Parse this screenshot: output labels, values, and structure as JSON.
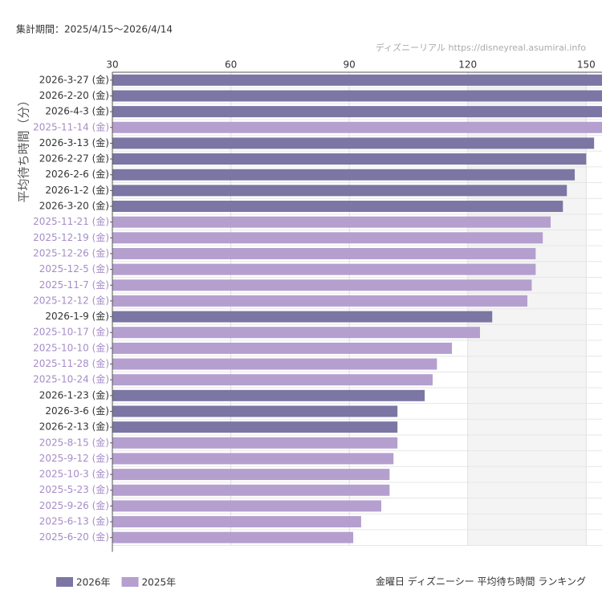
{
  "chart_data": {
    "type": "bar",
    "orientation": "horizontal",
    "title": "金曜日 ディズニーシー 平均待ち時間 ランキング",
    "subtitle": "集計期間：2025/4/15～2026/4/14",
    "source": "ディズニーリアル https://disneyreal.asumirai.info",
    "x_label": "平均待ち時間（分）",
    "categories": [
      "2026-3-27 (金)",
      "2026-2-20 (金)",
      "2026-4-3 (金)",
      "2025-11-14 (金)",
      "2026-3-13 (金)",
      "2026-2-27 (金)",
      "2026-2-6 (金)",
      "2026-1-2 (金)",
      "2026-3-20 (金)",
      "2025-11-21 (金)",
      "2025-12-19 (金)",
      "2025-12-26 (金)",
      "2025-12-5 (金)",
      "2025-11-7 (金)",
      "2025-12-12 (金)",
      "2026-1-9 (金)",
      "2025-10-17 (金)",
      "2025-10-10 (金)",
      "2025-11-28 (金)",
      "2025-10-24 (金)",
      "2026-1-23 (金)",
      "2026-3-6 (金)",
      "2026-2-13 (金)",
      "2025-8-15 (金)",
      "2025-9-12 (金)",
      "2025-10-3 (金)",
      "2025-5-23 (金)",
      "2025-9-26 (金)",
      "2025-6-13 (金)",
      "2025-6-20 (金)"
    ],
    "series": [
      {
        "name": "2026年",
        "color": "#7b76a3",
        "values": [
          156,
          155,
          155,
          null,
          152,
          150,
          147.1,
          145.1,
          144.1,
          null,
          null,
          null,
          null,
          null,
          null,
          126.2,
          null,
          null,
          null,
          null,
          109.1,
          102.2,
          102.2,
          null,
          null,
          null,
          null,
          null,
          null,
          null
        ]
      },
      {
        "name": "2025年",
        "color": "#b49fcf",
        "values": [
          null,
          null,
          null,
          154.5,
          null,
          null,
          null,
          null,
          null,
          141,
          139,
          137.2,
          137.2,
          136.2,
          135.1,
          null,
          123.1,
          116,
          112.2,
          111.1,
          null,
          null,
          null,
          102.2,
          101.2,
          100.2,
          100.2,
          98.1,
          93,
          91
        ]
      }
    ],
    "xlim": [
      30,
      154
    ],
    "xticks": [
      30,
      60,
      90,
      120,
      150
    ],
    "grid": true,
    "legend": "bottom-left"
  }
}
